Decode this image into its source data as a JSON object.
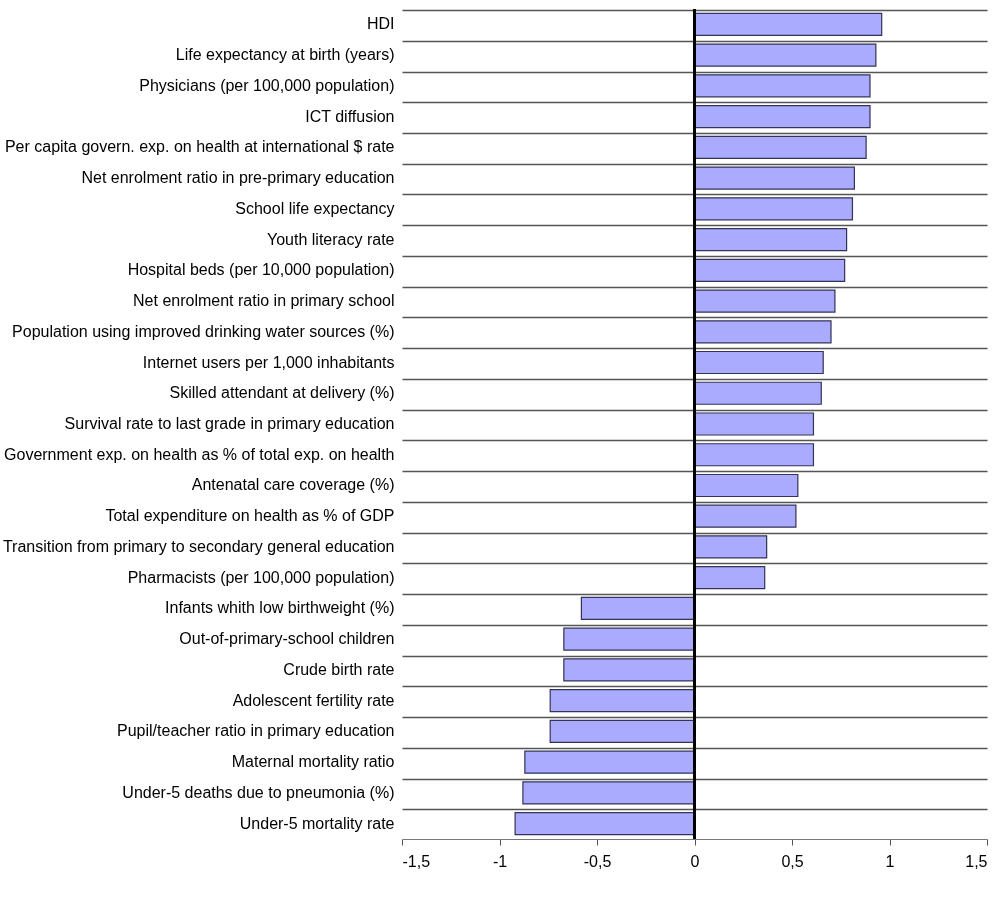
{
  "chart_data": {
    "type": "bar",
    "orientation": "horizontal",
    "categories": [
      "HDI",
      "Life expectancy at birth (years)",
      "Physicians (per 100,000 population)",
      "ICT diffusion",
      "Per capita govern. exp. on health at international $ rate",
      "Net enrolment ratio in pre-primary education",
      "School life expectancy",
      "Youth literacy rate",
      "Hospital beds (per 10,000 population)",
      "Net enrolment ratio in primary school",
      "Population using improved drinking water sources (%)",
      "Internet users per 1,000 inhabitants",
      "Skilled attendant at delivery (%)",
      "Survival rate to last grade in primary education",
      "Government exp. on health as % of total exp. on health",
      "Antenatal care coverage (%)",
      "Total expenditure on health as % of GDP",
      "Transition from primary to secondary general education",
      "Pharmacists (per 100,000 population)",
      "Infants whith low birthweight (%)",
      "Out-of-primary-school children",
      "Crude birth rate",
      "Adolescent fertility rate",
      "Pupil/teacher ratio in primary education",
      "Maternal mortality ratio",
      "Under-5 deaths due to pneumonia (%)",
      "Under-5 mortality rate"
    ],
    "series": [
      {
        "color": "#aaaaff",
        "values": [
          0.96,
          0.93,
          0.9,
          0.9,
          0.88,
          0.82,
          0.81,
          0.78,
          0.77,
          0.72,
          0.7,
          0.66,
          0.65,
          0.61,
          0.61,
          0.53,
          0.52,
          0.37,
          0.36,
          -0.58,
          -0.67,
          -0.67,
          -0.74,
          -0.74,
          -0.87,
          -0.88,
          -0.92
        ]
      }
    ],
    "xlim": [
      -1.5,
      1.5
    ],
    "xticks": [
      {
        "value": -1.5,
        "label": "-1,5"
      },
      {
        "value": -1,
        "label": "-1"
      },
      {
        "value": -0.5,
        "label": "-0,5"
      },
      {
        "value": 0,
        "label": "0"
      },
      {
        "value": 0.5,
        "label": "0,5"
      },
      {
        "value": 1,
        "label": "1"
      },
      {
        "value": 1.5,
        "label": "1,5"
      }
    ],
    "grid": "y",
    "legend": false
  }
}
